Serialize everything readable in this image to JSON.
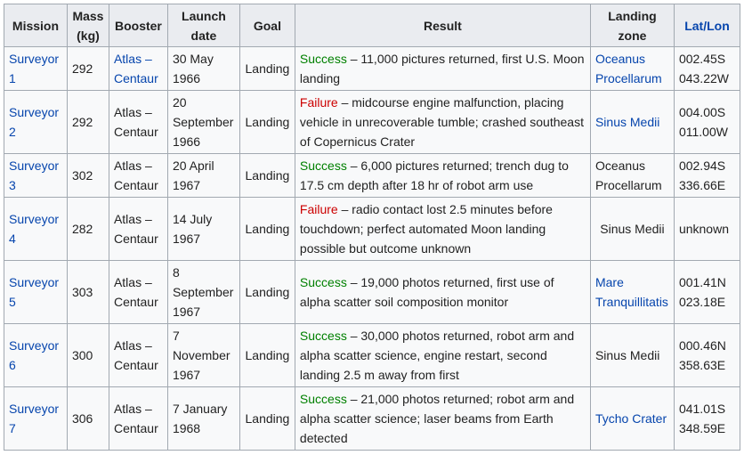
{
  "header": {
    "mission": "Mission",
    "mass": "Mass (kg)",
    "booster": "Booster",
    "launch_date": "Launch date",
    "goal": "Goal",
    "result": "Result",
    "landing_zone": "Landing zone",
    "latlon": "Lat/Lon"
  },
  "rows": [
    {
      "mission": "Surveyor 1",
      "mass": "292",
      "booster": "Atlas – Centaur",
      "date": "30 May 1966",
      "goal": "Landing",
      "status": "Success",
      "result": " – 11,000 pictures returned, first U.S. Moon landing",
      "zone": "Oceanus Procellarum",
      "lat": "002.45S",
      "lon": "043.22W"
    },
    {
      "mission": "Surveyor 2",
      "mass": "292",
      "booster": "Atlas – Centaur",
      "date": "20 September 1966",
      "goal": "Landing",
      "status": "Failure",
      "result": " – midcourse engine malfunction, placing vehicle in unrecoverable tumble; crashed southeast of Copernicus Crater",
      "zone": "Sinus Medii",
      "lat": "004.00S",
      "lon": "011.00W"
    },
    {
      "mission": "Surveyor 3",
      "mass": "302",
      "booster": "Atlas – Centaur",
      "date": "20 April 1967",
      "goal": "Landing",
      "status": "Success",
      "result": " – 6,000 pictures returned; trench dug to 17.5 cm depth after 18 hr of robot arm use",
      "zone": "Oceanus Procellarum",
      "lat": "002.94S",
      "lon": "336.66E"
    },
    {
      "mission": "Surveyor 4",
      "mass": "282",
      "booster": "Atlas – Centaur",
      "date": "14 July 1967",
      "goal": "Landing",
      "status": "Failure",
      "result": " – radio contact lost 2.5 minutes before touchdown; perfect automated Moon landing possible but outcome unknown",
      "zone": "Sinus Medii",
      "latlon": "unknown"
    },
    {
      "mission": "Surveyor 5",
      "mass": "303",
      "booster": "Atlas – Centaur",
      "date": "8 September 1967",
      "goal": "Landing",
      "status": "Success",
      "result": " – 19,000 photos returned, first use of alpha scatter soil composition monitor",
      "zone": "Mare Tranquillitatis",
      "lat": "001.41N",
      "lon": "023.18E"
    },
    {
      "mission": "Surveyor 6",
      "mass": "300",
      "booster": "Atlas – Centaur",
      "date": "7 November 1967",
      "goal": "Landing",
      "status": "Success",
      "result": " – 30,000 photos returned, robot arm and alpha scatter science, engine restart, second landing 2.5 m away from first",
      "zone": "Sinus Medii",
      "lat": "000.46N",
      "lon": "358.63E"
    },
    {
      "mission": "Surveyor 7",
      "mass": "306",
      "booster": "Atlas – Centaur",
      "date": "7 January 1968",
      "goal": "Landing",
      "status": "Success",
      "result": " – 21,000 photos returned; robot arm and alpha scatter science; laser beams from Earth detected",
      "zone": "Tycho Crater",
      "lat": "041.01S",
      "lon": "348.59E"
    }
  ],
  "colors": {
    "link": "#0645ad",
    "success": "#008000",
    "failure": "#cc0000",
    "header_bg": "#eaecf0",
    "cell_bg": "#f8f9fa",
    "border": "#a2a9b1"
  }
}
